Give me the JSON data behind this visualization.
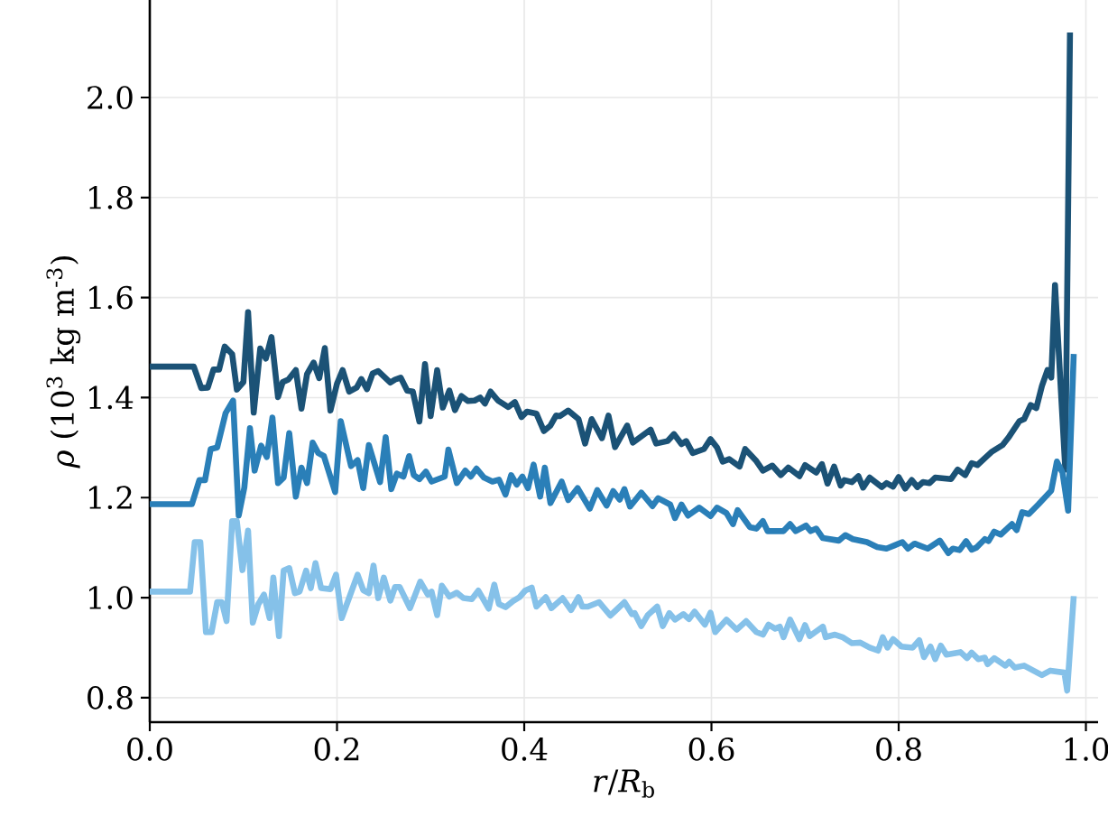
{
  "chart_data": {
    "type": "line",
    "xlabel": "*r*/*R*$_{b}$",
    "ylabel": "*ρ* (10$^{3}$ kg m$^{-3}$)",
    "xlim": [
      0,
      1.013
    ],
    "ylim": [
      0.751,
      2.195
    ],
    "xticks": [
      {
        "value": 0,
        "label": "0.0"
      },
      {
        "value": 0.2,
        "label": "0.2"
      },
      {
        "value": 0.4,
        "label": "0.4"
      },
      {
        "value": 0.6,
        "label": "0.6"
      },
      {
        "value": 0.8,
        "label": "0.8"
      },
      {
        "value": 1.0,
        "label": "1.0"
      }
    ],
    "yticks": [
      {
        "value": 0.8,
        "label": "0.8"
      },
      {
        "value": 1.0,
        "label": "1.0"
      },
      {
        "value": 1.2,
        "label": "1.2"
      },
      {
        "value": 1.4,
        "label": "1.4"
      },
      {
        "value": 1.6,
        "label": "1.6"
      },
      {
        "value": 1.8,
        "label": "1.8"
      },
      {
        "value": 2.0,
        "label": "2.0"
      }
    ],
    "grid": true,
    "series": [
      {
        "color": "#1b5276",
        "x": [
          0,
          0.047,
          0.055,
          0.062,
          0.068,
          0.074,
          0.08,
          0.088,
          0.093,
          0.1,
          0.105,
          0.111,
          0.118,
          0.124,
          0.13,
          0.137,
          0.142,
          0.148,
          0.156,
          0.162,
          0.168,
          0.175,
          0.181,
          0.187,
          0.193,
          0.2,
          0.206,
          0.213,
          0.221,
          0.226,
          0.232,
          0.238,
          0.244,
          0.257,
          0.262,
          0.268,
          0.275,
          0.281,
          0.288,
          0.294,
          0.3,
          0.307,
          0.313,
          0.32,
          0.326,
          0.333,
          0.34,
          0.347,
          0.353,
          0.358,
          0.364,
          0.372,
          0.383,
          0.39,
          0.397,
          0.403,
          0.413,
          0.421,
          0.428,
          0.434,
          0.438,
          0.447,
          0.458,
          0.465,
          0.472,
          0.483,
          0.49,
          0.497,
          0.51,
          0.516,
          0.535,
          0.541,
          0.553,
          0.56,
          0.568,
          0.573,
          0.58,
          0.592,
          0.599,
          0.606,
          0.612,
          0.619,
          0.63,
          0.636,
          0.648,
          0.655,
          0.665,
          0.674,
          0.682,
          0.694,
          0.7,
          0.712,
          0.718,
          0.724,
          0.731,
          0.738,
          0.742,
          0.75,
          0.757,
          0.762,
          0.769,
          0.782,
          0.787,
          0.794,
          0.8,
          0.807,
          0.814,
          0.82,
          0.826,
          0.833,
          0.839,
          0.856,
          0.863,
          0.871,
          0.878,
          0.884,
          0.899,
          0.911,
          0.918,
          0.929,
          0.934,
          0.941,
          0.947,
          0.953,
          0.959,
          0.963,
          0.967,
          0.978,
          0.983
        ],
        "values": [
          1.462,
          1.462,
          1.419,
          1.42,
          1.456,
          1.456,
          1.502,
          1.487,
          1.416,
          1.431,
          1.571,
          1.37,
          1.498,
          1.478,
          1.521,
          1.401,
          1.431,
          1.436,
          1.455,
          1.378,
          1.447,
          1.47,
          1.439,
          1.499,
          1.374,
          1.428,
          1.455,
          1.412,
          1.42,
          1.437,
          1.417,
          1.448,
          1.453,
          1.43,
          1.436,
          1.44,
          1.414,
          1.412,
          1.352,
          1.467,
          1.363,
          1.455,
          1.38,
          1.414,
          1.375,
          1.403,
          1.393,
          1.394,
          1.4,
          1.388,
          1.412,
          1.394,
          1.381,
          1.391,
          1.361,
          1.372,
          1.368,
          1.333,
          1.344,
          1.364,
          1.363,
          1.374,
          1.357,
          1.308,
          1.357,
          1.319,
          1.364,
          1.301,
          1.344,
          1.31,
          1.336,
          1.308,
          1.313,
          1.327,
          1.307,
          1.313,
          1.289,
          1.297,
          1.317,
          1.3,
          1.272,
          1.277,
          1.262,
          1.297,
          1.273,
          1.254,
          1.264,
          1.245,
          1.26,
          1.243,
          1.265,
          1.25,
          1.267,
          1.228,
          1.262,
          1.224,
          1.235,
          1.231,
          1.243,
          1.22,
          1.24,
          1.221,
          1.229,
          1.222,
          1.241,
          1.218,
          1.235,
          1.221,
          1.231,
          1.229,
          1.24,
          1.237,
          1.256,
          1.245,
          1.269,
          1.265,
          1.291,
          1.305,
          1.322,
          1.353,
          1.357,
          1.385,
          1.379,
          1.423,
          1.455,
          1.44,
          1.625,
          1.256,
          2.13
        ]
      },
      {
        "color": "#2a7fb8",
        "x": [
          0,
          0.045,
          0.053,
          0.059,
          0.065,
          0.072,
          0.081,
          0.089,
          0.095,
          0.101,
          0.107,
          0.112,
          0.119,
          0.125,
          0.131,
          0.137,
          0.143,
          0.149,
          0.156,
          0.162,
          0.168,
          0.174,
          0.18,
          0.186,
          0.198,
          0.204,
          0.215,
          0.222,
          0.228,
          0.234,
          0.246,
          0.252,
          0.258,
          0.264,
          0.271,
          0.277,
          0.282,
          0.288,
          0.295,
          0.301,
          0.315,
          0.319,
          0.328,
          0.337,
          0.343,
          0.349,
          0.357,
          0.366,
          0.373,
          0.38,
          0.386,
          0.392,
          0.398,
          0.404,
          0.41,
          0.417,
          0.422,
          0.428,
          0.44,
          0.447,
          0.457,
          0.47,
          0.478,
          0.488,
          0.495,
          0.502,
          0.507,
          0.513,
          0.525,
          0.537,
          0.543,
          0.556,
          0.561,
          0.568,
          0.575,
          0.587,
          0.599,
          0.606,
          0.616,
          0.623,
          0.628,
          0.641,
          0.648,
          0.655,
          0.66,
          0.677,
          0.684,
          0.69,
          0.701,
          0.706,
          0.712,
          0.719,
          0.736,
          0.743,
          0.751,
          0.766,
          0.777,
          0.787,
          0.795,
          0.804,
          0.81,
          0.817,
          0.831,
          0.844,
          0.853,
          0.858,
          0.865,
          0.872,
          0.878,
          0.883,
          0.892,
          0.896,
          0.902,
          0.909,
          0.921,
          0.926,
          0.932,
          0.939,
          0.949,
          0.963,
          0.969,
          0.975,
          0.981,
          0.987
        ],
        "values": [
          1.187,
          1.187,
          1.235,
          1.235,
          1.297,
          1.3,
          1.369,
          1.394,
          1.164,
          1.22,
          1.339,
          1.254,
          1.304,
          1.281,
          1.36,
          1.229,
          1.24,
          1.329,
          1.202,
          1.26,
          1.229,
          1.31,
          1.289,
          1.283,
          1.211,
          1.353,
          1.263,
          1.275,
          1.219,
          1.305,
          1.231,
          1.321,
          1.217,
          1.248,
          1.242,
          1.283,
          1.245,
          1.237,
          1.252,
          1.232,
          1.242,
          1.296,
          1.229,
          1.254,
          1.242,
          1.258,
          1.24,
          1.232,
          1.236,
          1.206,
          1.245,
          1.226,
          1.242,
          1.219,
          1.266,
          1.202,
          1.26,
          1.189,
          1.232,
          1.195,
          1.219,
          1.178,
          1.215,
          1.184,
          1.213,
          1.196,
          1.217,
          1.182,
          1.21,
          1.183,
          1.199,
          1.186,
          1.159,
          1.186,
          1.164,
          1.18,
          1.163,
          1.18,
          1.169,
          1.147,
          1.175,
          1.141,
          1.138,
          1.153,
          1.133,
          1.133,
          1.147,
          1.133,
          1.144,
          1.133,
          1.138,
          1.119,
          1.114,
          1.125,
          1.117,
          1.111,
          1.101,
          1.098,
          1.104,
          1.111,
          1.098,
          1.108,
          1.098,
          1.114,
          1.089,
          1.098,
          1.095,
          1.113,
          1.096,
          1.1,
          1.117,
          1.113,
          1.132,
          1.126,
          1.147,
          1.135,
          1.171,
          1.167,
          1.186,
          1.214,
          1.272,
          1.25,
          1.174,
          1.487
        ]
      },
      {
        "color": "#85c1e9",
        "x": [
          0,
          0.043,
          0.048,
          0.054,
          0.06,
          0.066,
          0.072,
          0.077,
          0.082,
          0.088,
          0.093,
          0.099,
          0.105,
          0.11,
          0.116,
          0.122,
          0.128,
          0.132,
          0.138,
          0.143,
          0.149,
          0.155,
          0.16,
          0.167,
          0.172,
          0.177,
          0.183,
          0.193,
          0.199,
          0.205,
          0.222,
          0.228,
          0.234,
          0.239,
          0.244,
          0.25,
          0.257,
          0.262,
          0.267,
          0.278,
          0.289,
          0.297,
          0.301,
          0.307,
          0.312,
          0.32,
          0.328,
          0.335,
          0.344,
          0.351,
          0.362,
          0.368,
          0.373,
          0.38,
          0.388,
          0.395,
          0.401,
          0.408,
          0.413,
          0.423,
          0.429,
          0.441,
          0.45,
          0.458,
          0.462,
          0.468,
          0.48,
          0.492,
          0.497,
          0.507,
          0.515,
          0.518,
          0.525,
          0.532,
          0.542,
          0.548,
          0.555,
          0.561,
          0.57,
          0.576,
          0.582,
          0.593,
          0.599,
          0.604,
          0.616,
          0.627,
          0.637,
          0.648,
          0.655,
          0.661,
          0.668,
          0.673,
          0.677,
          0.684,
          0.694,
          0.7,
          0.705,
          0.719,
          0.722,
          0.732,
          0.74,
          0.75,
          0.759,
          0.769,
          0.778,
          0.783,
          0.788,
          0.794,
          0.803,
          0.815,
          0.822,
          0.827,
          0.834,
          0.839,
          0.845,
          0.851,
          0.866,
          0.873,
          0.878,
          0.885,
          0.892,
          0.895,
          0.902,
          0.914,
          0.918,
          0.924,
          0.934,
          0.943,
          0.953,
          0.962,
          0.977,
          0.98,
          0.987
        ],
        "values": [
          1.012,
          1.012,
          1.111,
          1.111,
          0.931,
          0.931,
          0.991,
          0.991,
          0.953,
          1.153,
          1.153,
          1.055,
          1.134,
          0.95,
          0.987,
          1.006,
          0.959,
          1.04,
          0.923,
          1.054,
          1.059,
          1.009,
          1.012,
          1.054,
          1.019,
          1.069,
          1.019,
          1.017,
          1.046,
          0.959,
          1.046,
          1.015,
          1.009,
          1.064,
          0.999,
          1.04,
          0.994,
          1.021,
          1.021,
          0.979,
          1.032,
          1.006,
          1.012,
          0.965,
          1.024,
          1.002,
          1.01,
          0.999,
          0.997,
          1.014,
          0.978,
          1.026,
          0.987,
          0.981,
          0.993,
          1.001,
          1.014,
          1.02,
          0.982,
          1.001,
          0.979,
          0.999,
          0.975,
          1.001,
          0.982,
          0.982,
          0.991,
          0.964,
          0.973,
          0.991,
          0.967,
          0.969,
          0.943,
          0.965,
          0.982,
          0.943,
          0.969,
          0.956,
          0.967,
          0.957,
          0.972,
          0.946,
          0.97,
          0.931,
          0.956,
          0.936,
          0.953,
          0.931,
          0.926,
          0.946,
          0.938,
          0.942,
          0.921,
          0.956,
          0.917,
          0.945,
          0.923,
          0.942,
          0.921,
          0.926,
          0.921,
          0.909,
          0.91,
          0.9,
          0.894,
          0.921,
          0.9,
          0.917,
          0.902,
          0.9,
          0.915,
          0.881,
          0.902,
          0.877,
          0.904,
          0.886,
          0.891,
          0.879,
          0.89,
          0.877,
          0.88,
          0.867,
          0.879,
          0.864,
          0.872,
          0.86,
          0.864,
          0.855,
          0.845,
          0.854,
          0.85,
          0.814,
          1.003
        ]
      }
    ]
  }
}
